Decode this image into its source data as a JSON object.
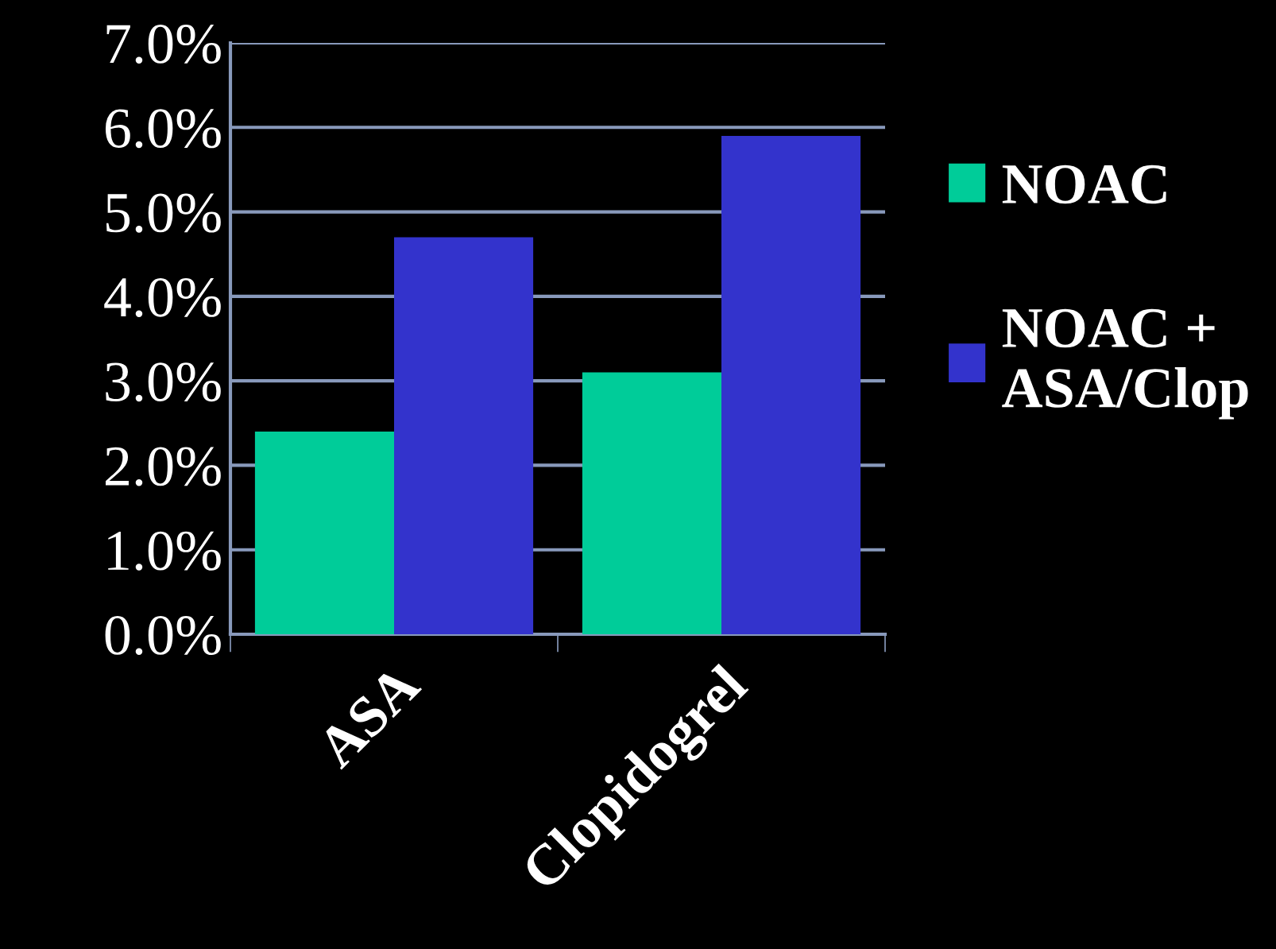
{
  "chart_data": {
    "type": "bar",
    "categories": [
      "ASA",
      "Clopidogrel"
    ],
    "series": [
      {
        "name": "NOAC",
        "color": "#00cc99",
        "values": [
          2.4,
          3.1
        ]
      },
      {
        "name": "NOAC +\nASA/Clop",
        "color": "#3333cc",
        "values": [
          4.7,
          5.9
        ]
      }
    ],
    "ylim": [
      0,
      7
    ],
    "yticks": [
      {
        "value": 0,
        "label": "0.0%"
      },
      {
        "value": 1,
        "label": "1.0%"
      },
      {
        "value": 2,
        "label": "2.0%"
      },
      {
        "value": 3,
        "label": "3.0%"
      },
      {
        "value": 4,
        "label": "4.0%"
      },
      {
        "value": 5,
        "label": "5.0%"
      },
      {
        "value": 6,
        "label": "6.0%"
      },
      {
        "value": 7,
        "label": "7.0%"
      }
    ],
    "grid": "y",
    "legend": "right"
  }
}
